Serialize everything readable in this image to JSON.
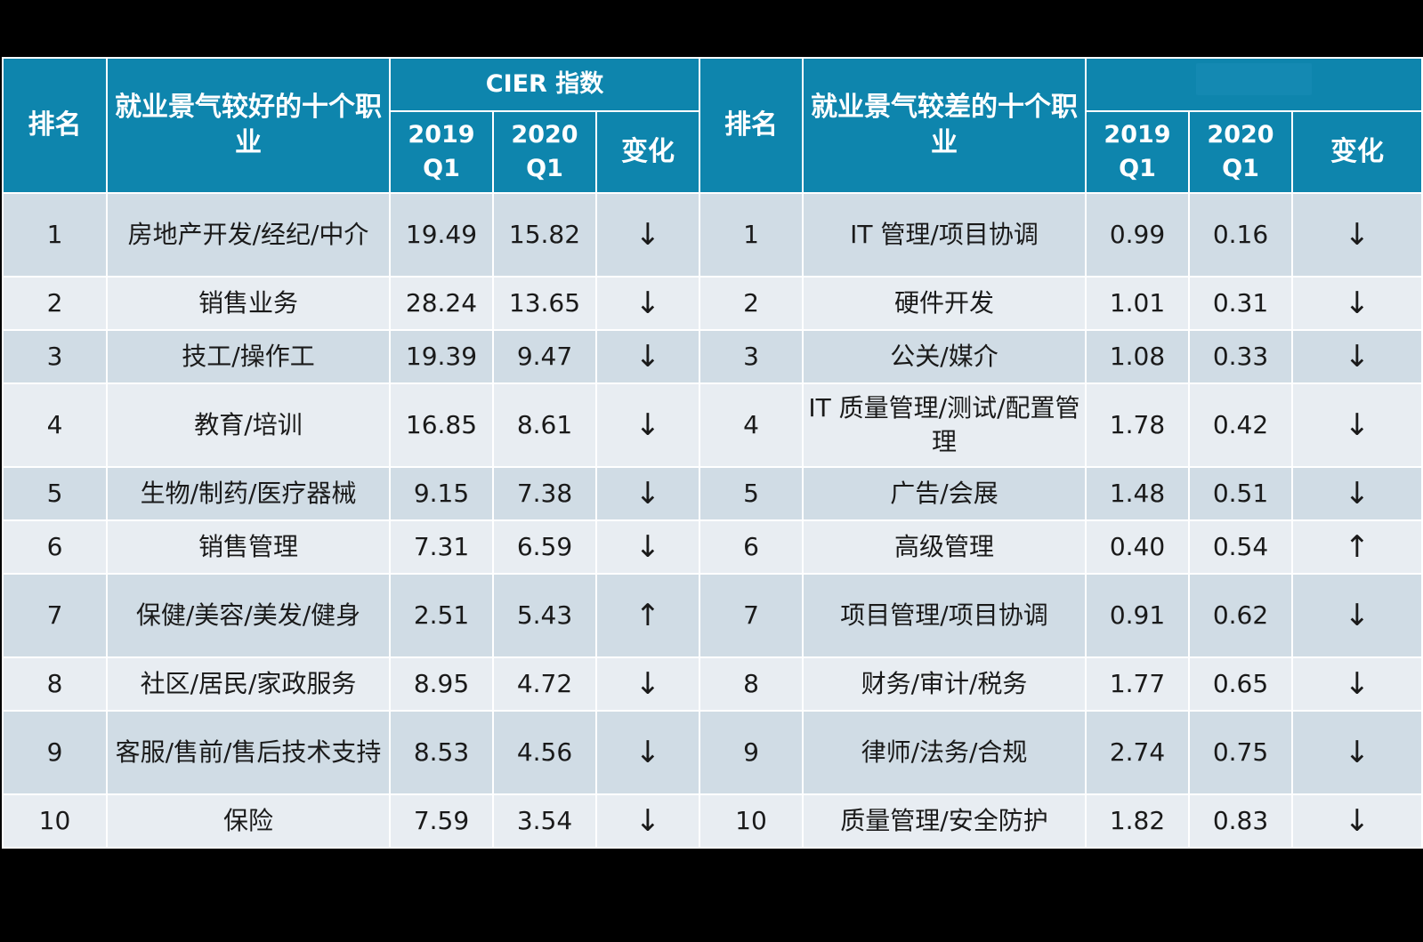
{
  "chart_data": {
    "type": "table",
    "header": {
      "rank": "排名",
      "good_title": "就业景气较好的十个职业",
      "bad_title": "就业景气较差的十个职业",
      "index_group": "CIER 指数",
      "index_group_right": "",
      "col_2019": "2019 Q1",
      "col_2020": "2020 Q1",
      "change": "变化"
    },
    "rows": [
      {
        "rank": "1",
        "good": "房地产开发/经纪/中介",
        "g2019": "19.49",
        "g2020": "15.82",
        "gchg": "↓",
        "rank2": "1",
        "bad": "IT 管理/项目协调",
        "b2019": "0.99",
        "b2020": "0.16",
        "bchg": "↓"
      },
      {
        "rank": "2",
        "good": "销售业务",
        "g2019": "28.24",
        "g2020": "13.65",
        "gchg": "↓",
        "rank2": "2",
        "bad": "硬件开发",
        "b2019": "1.01",
        "b2020": "0.31",
        "bchg": "↓"
      },
      {
        "rank": "3",
        "good": "技工/操作工",
        "g2019": "19.39",
        "g2020": "9.47",
        "gchg": "↓",
        "rank2": "3",
        "bad": "公关/媒介",
        "b2019": "1.08",
        "b2020": "0.33",
        "bchg": "↓"
      },
      {
        "rank": "4",
        "good": "教育/培训",
        "g2019": "16.85",
        "g2020": "8.61",
        "gchg": "↓",
        "rank2": "4",
        "bad": "IT 质量管理/测试/配置管理",
        "b2019": "1.78",
        "b2020": "0.42",
        "bchg": "↓"
      },
      {
        "rank": "5",
        "good": "生物/制药/医疗器械",
        "g2019": "9.15",
        "g2020": "7.38",
        "gchg": "↓",
        "rank2": "5",
        "bad": "广告/会展",
        "b2019": "1.48",
        "b2020": "0.51",
        "bchg": "↓"
      },
      {
        "rank": "6",
        "good": "销售管理",
        "g2019": "7.31",
        "g2020": "6.59",
        "gchg": "↓",
        "rank2": "6",
        "bad": "高级管理",
        "b2019": "0.40",
        "b2020": "0.54",
        "bchg": "↑"
      },
      {
        "rank": "7",
        "good": "保健/美容/美发/健身",
        "g2019": "2.51",
        "g2020": "5.43",
        "gchg": "↑",
        "rank2": "7",
        "bad": "项目管理/项目协调",
        "b2019": "0.91",
        "b2020": "0.62",
        "bchg": "↓"
      },
      {
        "rank": "8",
        "good": "社区/居民/家政服务",
        "g2019": "8.95",
        "g2020": "4.72",
        "gchg": "↓",
        "rank2": "8",
        "bad": "财务/审计/税务",
        "b2019": "1.77",
        "b2020": "0.65",
        "bchg": "↓"
      },
      {
        "rank": "9",
        "good": "客服/售前/售后技术支持",
        "g2019": "8.53",
        "g2020": "4.56",
        "gchg": "↓",
        "rank2": "9",
        "bad": "律师/法务/合规",
        "b2019": "2.74",
        "b2020": "0.75",
        "bchg": "↓"
      },
      {
        "rank": "10",
        "good": "保险",
        "g2019": "7.59",
        "g2020": "3.54",
        "gchg": "↓",
        "rank2": "10",
        "bad": "质量管理/安全防护",
        "b2019": "1.82",
        "b2020": "0.83",
        "bchg": "↓"
      }
    ]
  },
  "colors": {
    "header_bg": "#0e85ad",
    "row_odd": "#d0dce5",
    "row_even": "#e8edf2",
    "page_bg": "#000000"
  }
}
